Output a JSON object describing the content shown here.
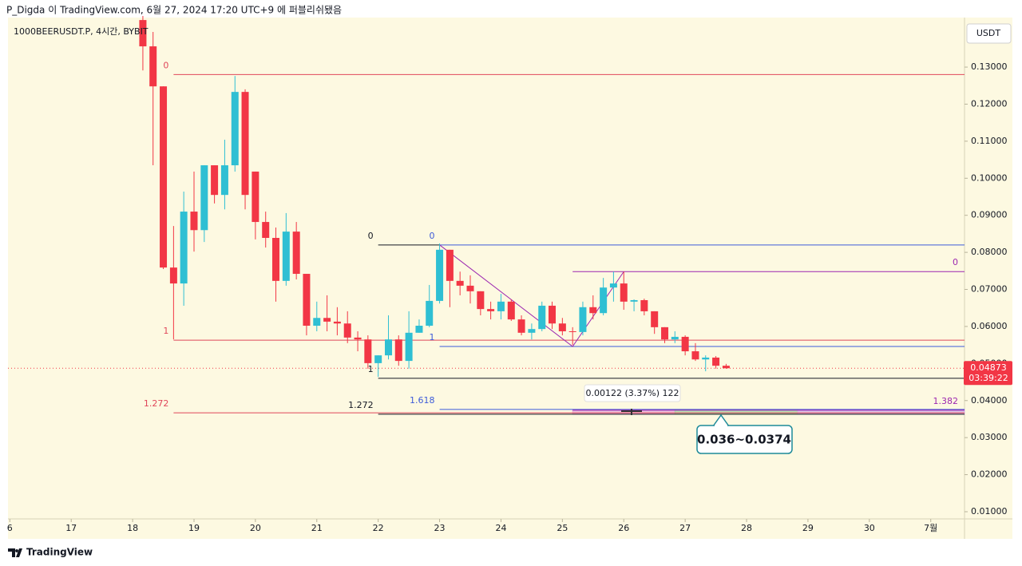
{
  "header": "P_Digda 이 TradingView.com, 6월 27, 2024 17:20 UTC+9 에 퍼블리쉬됐음",
  "footer": {
    "brand": "TradingView"
  },
  "chart_data": {
    "type": "candlestick",
    "symbol": "1000BEERUSDT.P, 4시간, BYBIT",
    "currency": "USDT",
    "up_color": "#2fbfd3",
    "down_color": "#f23645",
    "xlim": [
      15.97,
      31.55
    ],
    "xticks": [
      {
        "value": 16,
        "label": "6"
      },
      17,
      18,
      19,
      20,
      21,
      22,
      23,
      24,
      25,
      26,
      27,
      28,
      29,
      30,
      {
        "value": 31,
        "label": "7월"
      }
    ],
    "ylim": [
      0.00806,
      0.1438
    ],
    "yticks": [
      {
        "value": 0.01,
        "label": "0.01000"
      },
      {
        "value": 0.02,
        "label": "0.02000"
      },
      {
        "value": 0.03,
        "label": "0.03000"
      },
      {
        "value": 0.04,
        "label": "0.04000"
      },
      {
        "value": 0.05,
        "label": "0.05000"
      },
      {
        "value": 0.06,
        "label": "0.06000"
      },
      {
        "value": 0.07,
        "label": "0.07000"
      },
      {
        "value": 0.08,
        "label": "0.08000"
      },
      {
        "value": 0.09,
        "label": "0.09000"
      },
      {
        "value": 0.1,
        "label": "0.10000"
      },
      {
        "value": 0.11,
        "label": "0.11000"
      },
      {
        "value": 0.12,
        "label": "0.12000"
      },
      {
        "value": 0.13,
        "label": "0.13000"
      }
    ],
    "x": [
      18.167,
      18.333,
      18.5,
      18.667,
      18.833,
      19,
      19.167,
      19.333,
      19.5,
      19.667,
      19.833,
      20,
      20.167,
      20.333,
      20.5,
      20.667,
      20.833,
      21,
      21.167,
      21.333,
      21.5,
      21.667,
      21.833,
      22,
      22.167,
      22.333,
      22.5,
      22.667,
      22.833,
      23,
      23.167,
      23.333,
      23.5,
      23.667,
      23.833,
      24,
      24.167,
      24.333,
      24.5,
      24.667,
      24.833,
      25,
      25.167,
      25.333,
      25.5,
      25.667,
      25.833,
      26,
      26.167,
      26.333,
      26.5,
      26.667,
      26.833,
      27,
      27.167,
      27.333,
      27.5,
      27.667
    ],
    "open": [
      0.1427,
      0.1356,
      0.1248,
      0.0759,
      0.0716,
      0.091,
      0.086,
      0.1035,
      0.0955,
      0.1035,
      0.1233,
      0.1018,
      0.0882,
      0.0839,
      0.0723,
      0.0856,
      0.0742,
      0.0602,
      0.0623,
      0.0613,
      0.0608,
      0.057,
      0.0565,
      0.0501,
      0.0522,
      0.0565,
      0.0507,
      0.0583,
      0.0602,
      0.0669,
      0.0807,
      0.0723,
      0.071,
      0.0695,
      0.0647,
      0.0641,
      0.0667,
      0.0619,
      0.0583,
      0.0593,
      0.0656,
      0.0608,
      0.0587,
      0.0585,
      0.0652,
      0.0636,
      0.0705,
      0.0716,
      0.0667,
      0.0671,
      0.0641,
      0.0598,
      0.0565,
      0.0572,
      0.0533,
      0.0511,
      0.0516,
      0.0494
    ],
    "high": [
      0.146,
      0.1395,
      0.1248,
      0.0871,
      0.0964,
      0.1018,
      0.1035,
      0.1035,
      0.1104,
      0.1276,
      0.124,
      0.1018,
      0.091,
      0.0867,
      0.0906,
      0.0882,
      0.0742,
      0.0667,
      0.0684,
      0.0652,
      0.0641,
      0.0587,
      0.0576,
      0.0522,
      0.063,
      0.0576,
      0.0641,
      0.0619,
      0.0712,
      0.0824,
      0.0807,
      0.0748,
      0.0738,
      0.0695,
      0.0667,
      0.0688,
      0.0673,
      0.063,
      0.0608,
      0.0667,
      0.0667,
      0.0623,
      0.0598,
      0.0667,
      0.0684,
      0.0731,
      0.0748,
      0.0748,
      0.0673,
      0.0675,
      0.0641,
      0.0598,
      0.0587,
      0.0576,
      0.0555,
      0.0522,
      0.052,
      0.0499
    ],
    "low": [
      0.1291,
      0.1035,
      0.0755,
      0.0565,
      0.0656,
      0.0802,
      0.0828,
      0.0932,
      0.0916,
      0.1018,
      0.0916,
      0.0835,
      0.0813,
      0.0667,
      0.071,
      0.0727,
      0.0576,
      0.0587,
      0.0587,
      0.0576,
      0.0555,
      0.0533,
      0.0486,
      0.0464,
      0.0511,
      0.0494,
      0.0486,
      0.0583,
      0.0598,
      0.0662,
      0.0652,
      0.0684,
      0.0662,
      0.063,
      0.0619,
      0.0619,
      0.0615,
      0.0576,
      0.0565,
      0.0587,
      0.0593,
      0.0576,
      0.055,
      0.0576,
      0.0619,
      0.063,
      0.0667,
      0.0645,
      0.0641,
      0.063,
      0.058,
      0.0555,
      0.0555,
      0.0522,
      0.0507,
      0.0479,
      0.0486,
      0.0486
    ],
    "close": [
      0.1356,
      0.1248,
      0.0759,
      0.0716,
      0.091,
      0.086,
      0.1035,
      0.0955,
      0.1035,
      0.1233,
      0.0955,
      0.0882,
      0.0839,
      0.0723,
      0.0856,
      0.0742,
      0.0602,
      0.0623,
      0.0613,
      0.0608,
      0.057,
      0.0565,
      0.0501,
      0.0522,
      0.0565,
      0.0507,
      0.0583,
      0.0602,
      0.0669,
      0.0807,
      0.0723,
      0.071,
      0.0695,
      0.0647,
      0.0641,
      0.0667,
      0.0619,
      0.0583,
      0.0593,
      0.0656,
      0.0608,
      0.0587,
      0.0585,
      0.0652,
      0.0636,
      0.0705,
      0.0716,
      0.0667,
      0.0671,
      0.0641,
      0.0598,
      0.0565,
      0.0572,
      0.0533,
      0.0511,
      0.0516,
      0.0494,
      0.04873
    ],
    "last_price": {
      "value": 0.04873,
      "label": "0.04873",
      "countdown": "03:39:22",
      "color": "#f23645"
    },
    "fibs": [
      {
        "color": "#e0475a",
        "x_start": 18.667,
        "label_side": "left",
        "levels": [
          {
            "ratio": "0",
            "price": 0.128
          },
          {
            "ratio": "1",
            "price": 0.0563
          },
          {
            "ratio": "1.272",
            "price": 0.0367
          }
        ]
      },
      {
        "color": "#131722",
        "x_start": 22,
        "label_side": "left",
        "levels": [
          {
            "ratio": "0",
            "price": 0.082,
            "x_end": 23
          },
          {
            "ratio": "1",
            "price": 0.046
          },
          {
            "ratio": "1.272",
            "price": 0.0363
          }
        ]
      },
      {
        "color": "#3d5bd9",
        "x_start": 23,
        "label_side": "left",
        "levels": [
          {
            "ratio": "0",
            "price": 0.082
          },
          {
            "ratio": "1",
            "price": 0.0546
          },
          {
            "ratio": "1.618",
            "price": 0.0376
          }
        ]
      },
      {
        "color": "#9c27b0",
        "x_start": 25.167,
        "label_side": "right",
        "levels": [
          {
            "ratio": "0",
            "price": 0.0748
          },
          {
            "ratio": "1.382",
            "price": 0.0374
          }
        ]
      }
    ],
    "trend_path": {
      "color": "#9c27b0",
      "x": [
        23,
        25.167,
        26
      ],
      "y": [
        0.082,
        0.0546,
        0.0748
      ]
    },
    "zones": [
      {
        "x": [
          25.167,
          26.833
        ],
        "price": [
          0.0363,
          0.0376
        ],
        "color": "#e7b3dc"
      },
      {
        "x": [
          26.833,
          28.833
        ],
        "price": [
          0.0363,
          0.0376
        ],
        "color": "#a8d8a8"
      },
      {
        "x": [
          28.833,
          31.55
        ],
        "price": [
          0.0363,
          0.0376
        ],
        "color": "#d3b6e6"
      }
    ],
    "measure_label": "0.00122 (3.37%) 122",
    "callout": "0.036~0.0374"
  }
}
